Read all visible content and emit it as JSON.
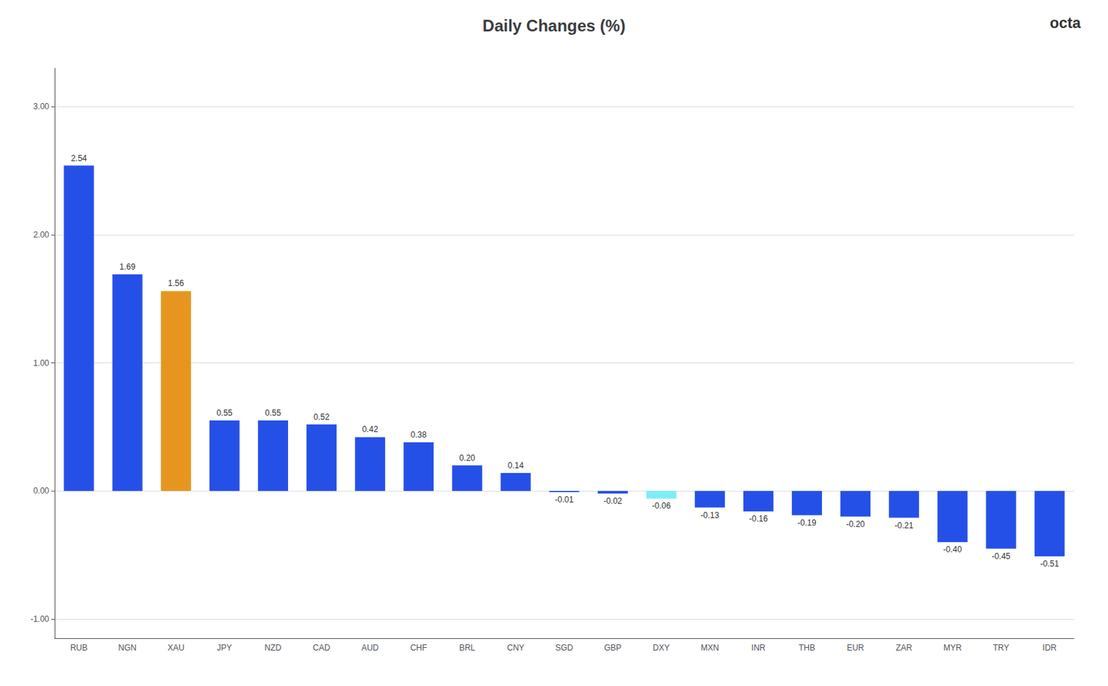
{
  "chart_data": {
    "type": "bar",
    "title": "Daily Changes (%)",
    "categories": [
      "RUB",
      "NGN",
      "XAU",
      "JPY",
      "NZD",
      "CAD",
      "AUD",
      "CHF",
      "BRL",
      "CNY",
      "SGD",
      "GBP",
      "DXY",
      "MXN",
      "INR",
      "THB",
      "EUR",
      "ZAR",
      "MYR",
      "TRY",
      "IDR"
    ],
    "values": [
      2.54,
      1.69,
      1.56,
      0.55,
      0.55,
      0.52,
      0.42,
      0.38,
      0.2,
      0.14,
      -0.01,
      -0.02,
      -0.06,
      -0.13,
      -0.16,
      -0.19,
      -0.2,
      -0.21,
      -0.4,
      -0.45,
      -0.51
    ],
    "value_labels": [
      "2.54",
      "1.69",
      "1.56",
      "0.55",
      "0.55",
      "0.52",
      "0.42",
      "0.38",
      "0.20",
      "0.14",
      "-0.01",
      "-0.02",
      "-0.06",
      "-0.13",
      "-0.16",
      "-0.19",
      "-0.20",
      "-0.21",
      "-0.40",
      "-0.45",
      "-0.51"
    ],
    "colors": [
      "#2550e8",
      "#2550e8",
      "#e6961e",
      "#2550e8",
      "#2550e8",
      "#2550e8",
      "#2550e8",
      "#2550e8",
      "#2550e8",
      "#2550e8",
      "#2550e8",
      "#2550e8",
      "#7deef8",
      "#2550e8",
      "#2550e8",
      "#2550e8",
      "#2550e8",
      "#2550e8",
      "#2550e8",
      "#2550e8",
      "#2550e8"
    ],
    "ylim": [
      -1.15,
      3.3
    ],
    "yticks": [
      {
        "value": -1,
        "label": "-1.00"
      },
      {
        "value": 0,
        "label": "0.00"
      },
      {
        "value": 1,
        "label": "1.00"
      },
      {
        "value": 2,
        "label": "2.00"
      },
      {
        "value": 3,
        "label": "3.00"
      }
    ],
    "grid": true,
    "data_labels": true,
    "annotations": [
      {
        "text": "octa"
      }
    ]
  }
}
